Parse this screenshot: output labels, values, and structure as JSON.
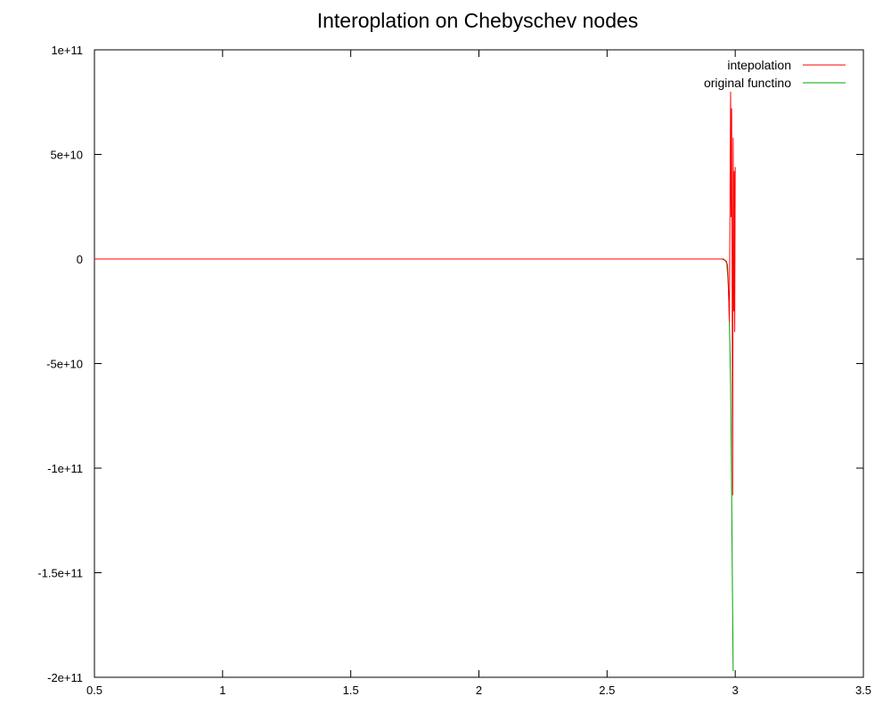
{
  "chart_data": {
    "type": "line",
    "title": "Interoplation on Chebyschev nodes",
    "xlabel": "",
    "ylabel": "",
    "xlim": [
      0.5,
      3.5
    ],
    "ylim": [
      -200000000000,
      100000000000
    ],
    "grid": false,
    "legend_position": "top-right",
    "x_ticks": [
      {
        "value": 0.5,
        "label": "0.5"
      },
      {
        "value": 1,
        "label": "1"
      },
      {
        "value": 1.5,
        "label": "1.5"
      },
      {
        "value": 2,
        "label": "2"
      },
      {
        "value": 2.5,
        "label": "2.5"
      },
      {
        "value": 3,
        "label": "3"
      },
      {
        "value": 3.5,
        "label": "3.5"
      }
    ],
    "y_ticks": [
      {
        "value": 100000000000,
        "label": "1e+11"
      },
      {
        "value": 50000000000,
        "label": "5e+10"
      },
      {
        "value": 0,
        "label": "0"
      },
      {
        "value": -50000000000,
        "label": "-5e+10"
      },
      {
        "value": -100000000000,
        "label": "-1e+11"
      },
      {
        "value": -150000000000,
        "label": "-1.5e+11"
      },
      {
        "value": -200000000000,
        "label": "-2e+11"
      }
    ],
    "series": [
      {
        "name": "intepolation",
        "color": "#ff0000",
        "points": [
          [
            0.5,
            0
          ],
          [
            2.95,
            0
          ],
          [
            2.965,
            -1000000000
          ],
          [
            2.97,
            -3000000000
          ],
          [
            2.972,
            -8000000000
          ],
          [
            2.975,
            -20000000000
          ],
          [
            2.977,
            -30000000000
          ],
          [
            2.979,
            10000000000
          ],
          [
            2.982,
            80000000000
          ],
          [
            2.984,
            20000000000
          ],
          [
            2.986,
            72000000000
          ],
          [
            2.988,
            -10000000000
          ],
          [
            2.99,
            -113000000000
          ],
          [
            2.992,
            58000000000
          ],
          [
            2.994,
            -25000000000
          ],
          [
            2.996,
            42000000000
          ],
          [
            2.998,
            -35000000000
          ],
          [
            3.0,
            44000000000
          ]
        ]
      },
      {
        "name": "original functino",
        "color": "#00a000",
        "points": [
          [
            0.5,
            0
          ],
          [
            2.955,
            0
          ],
          [
            2.962,
            -1000000000
          ],
          [
            2.967,
            -2000000000
          ],
          [
            2.97,
            -7000000000
          ],
          [
            2.973,
            -13000000000
          ],
          [
            2.976,
            -24000000000
          ],
          [
            2.979,
            -40000000000
          ],
          [
            2.982,
            -60000000000
          ],
          [
            2.984,
            -85000000000
          ],
          [
            2.986,
            -113000000000
          ],
          [
            2.988,
            -140000000000
          ],
          [
            2.99,
            -170000000000
          ],
          [
            2.992,
            -197000000000
          ]
        ]
      }
    ]
  }
}
